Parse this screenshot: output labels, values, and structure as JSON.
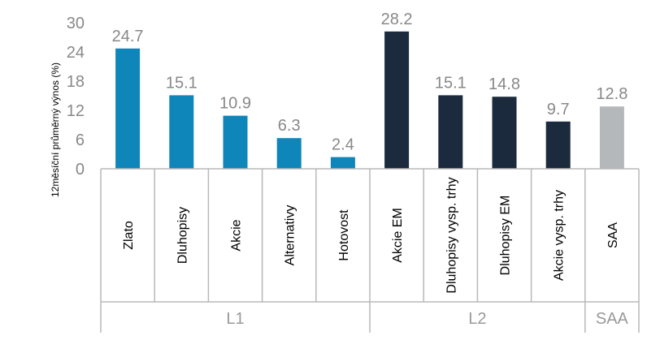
{
  "chart_data": {
    "type": "bar",
    "ylabel": "12měsíční průměrný výnos (%)",
    "ylim": [
      0,
      30
    ],
    "yticks": [
      0,
      6,
      12,
      18,
      24,
      30
    ],
    "categories": [
      "Zlato",
      "Dluhopisy",
      "Akcie",
      "Alternativy",
      "Hotovost",
      "Akcie EM",
      "Dluhopisy vysp. trhy",
      "Dluhopisy EM",
      "Akcie vysp. trhy",
      "SAA"
    ],
    "values": [
      24.7,
      15.1,
      10.9,
      6.3,
      2.4,
      28.2,
      15.1,
      14.8,
      9.7,
      12.8
    ],
    "value_labels": [
      "24.7",
      "15.1",
      "10.9",
      "6.3",
      "2.4",
      "28.2",
      "15.1",
      "14.8",
      "9.7",
      "12.8"
    ],
    "groups": [
      {
        "name": "L1",
        "start": 0,
        "end": 4,
        "color": "#0f86b9"
      },
      {
        "name": "L2",
        "start": 5,
        "end": 8,
        "color": "#1b2a3d"
      },
      {
        "name": "SAA",
        "start": 9,
        "end": 9,
        "color": "#b5b8bb"
      }
    ],
    "grid": false,
    "legend": "none"
  }
}
